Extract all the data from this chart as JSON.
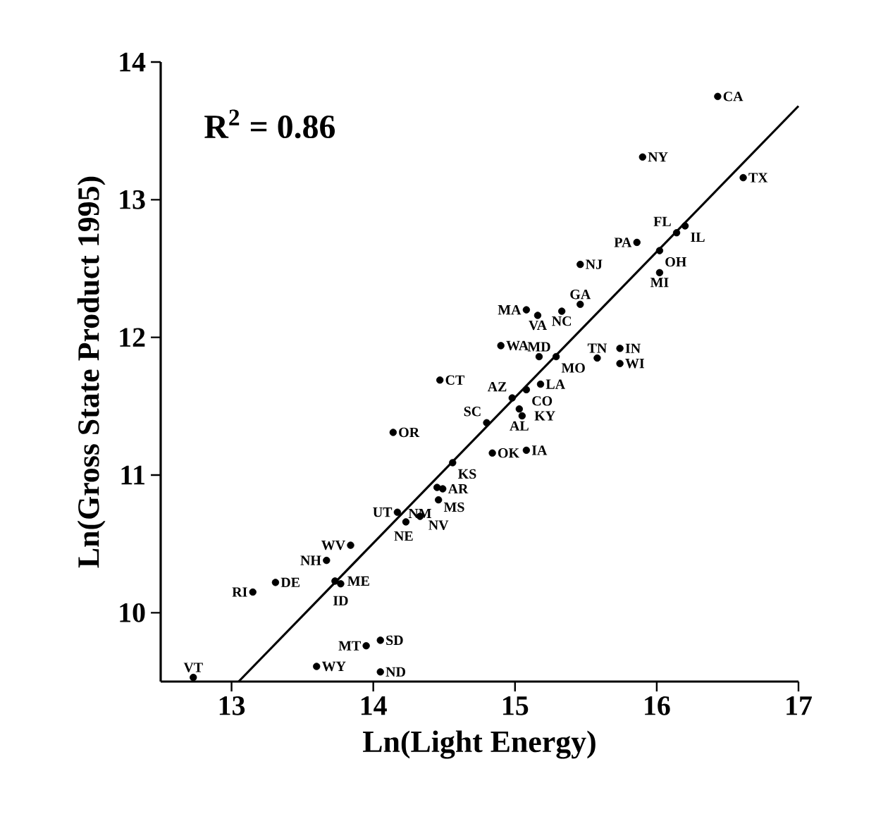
{
  "chart_data": {
    "type": "scatter",
    "xlabel": "Ln(Light Energy)",
    "ylabel": "Ln(Gross State Product 1995)",
    "xlim": [
      12.5,
      17
    ],
    "ylim": [
      9.5,
      14
    ],
    "xticks": [
      13,
      14,
      15,
      16,
      17
    ],
    "yticks": [
      10,
      11,
      12,
      13,
      14
    ],
    "series": [
      {
        "type": "scatter",
        "marker": "circle",
        "color": "#000000",
        "x": [
          16.43,
          15.9,
          16.61,
          16.2,
          16.14,
          15.86,
          16.02,
          15.46,
          16.02,
          15.46,
          15.08,
          15.16,
          15.33,
          14.9,
          15.17,
          15.29,
          15.58,
          15.74,
          15.74,
          15.18,
          15.08,
          14.98,
          15.03,
          15.05,
          14.8,
          14.84,
          15.08,
          14.47,
          14.14,
          14.56,
          14.45,
          14.49,
          14.46,
          14.33,
          14.17,
          14.23,
          13.84,
          13.67,
          13.73,
          13.77,
          13.31,
          13.15,
          14.05,
          13.95,
          13.6,
          14.05,
          12.73
        ],
        "values": [
          13.75,
          13.31,
          13.16,
          12.81,
          12.76,
          12.69,
          12.63,
          12.53,
          12.47,
          12.24,
          12.2,
          12.16,
          12.19,
          11.94,
          11.86,
          11.86,
          11.85,
          11.92,
          11.81,
          11.66,
          11.62,
          11.56,
          11.48,
          11.43,
          11.38,
          11.16,
          11.18,
          11.69,
          11.31,
          11.09,
          10.91,
          10.9,
          10.82,
          10.7,
          10.73,
          10.66,
          10.49,
          10.38,
          10.23,
          10.21,
          10.22,
          10.15,
          9.8,
          9.76,
          9.61,
          9.57,
          9.53
        ]
      },
      {
        "type": "line",
        "color": "#000000",
        "marker": "none",
        "x": [
          13.05,
          17
        ],
        "values": [
          9.5,
          13.68
        ]
      }
    ],
    "annotations": [
      "R$^{2}$ = 0.86",
      {
        "text": "CA",
        "x": 16.43,
        "y": 13.75
      },
      {
        "text": "NY",
        "x": 15.9,
        "y": 13.31
      },
      {
        "text": "TX",
        "x": 16.61,
        "y": 13.16
      },
      {
        "text": "IL",
        "x": 16.2,
        "y": 12.81
      },
      {
        "text": "FL",
        "x": 16.14,
        "y": 12.76
      },
      {
        "text": "PA",
        "x": 15.86,
        "y": 12.69
      },
      {
        "text": "OH",
        "x": 16.02,
        "y": 12.63
      },
      {
        "text": "NJ",
        "x": 15.46,
        "y": 12.53
      },
      {
        "text": "MI",
        "x": 16.02,
        "y": 12.47
      },
      {
        "text": "GA",
        "x": 15.46,
        "y": 12.24
      },
      {
        "text": "MA",
        "x": 15.08,
        "y": 12.2
      },
      {
        "text": "VA",
        "x": 15.16,
        "y": 12.16
      },
      {
        "text": "NC",
        "x": 15.33,
        "y": 12.19
      },
      {
        "text": "WA",
        "x": 14.9,
        "y": 11.94
      },
      {
        "text": "MD",
        "x": 15.17,
        "y": 11.86
      },
      {
        "text": "MO",
        "x": 15.29,
        "y": 11.86
      },
      {
        "text": "TN",
        "x": 15.58,
        "y": 11.85
      },
      {
        "text": "IN",
        "x": 15.74,
        "y": 11.92
      },
      {
        "text": "WI",
        "x": 15.74,
        "y": 11.81
      },
      {
        "text": "LA",
        "x": 15.18,
        "y": 11.66
      },
      {
        "text": "CO",
        "x": 15.08,
        "y": 11.62
      },
      {
        "text": "AZ",
        "x": 14.98,
        "y": 11.56
      },
      {
        "text": "AL",
        "x": 15.03,
        "y": 11.48
      },
      {
        "text": "KY",
        "x": 15.05,
        "y": 11.43
      },
      {
        "text": "SC",
        "x": 14.8,
        "y": 11.38
      },
      {
        "text": "OK",
        "x": 14.84,
        "y": 11.16
      },
      {
        "text": "IA",
        "x": 15.08,
        "y": 11.18
      },
      {
        "text": "CT",
        "x": 14.47,
        "y": 11.69
      },
      {
        "text": "OR",
        "x": 14.14,
        "y": 11.31
      },
      {
        "text": "KS",
        "x": 14.56,
        "y": 11.09
      },
      {
        "text": "MS",
        "x": 14.45,
        "y": 10.91
      },
      {
        "text": "AR",
        "x": 14.49,
        "y": 10.9
      },
      {
        "text": "NV",
        "x": 14.46,
        "y": 10.82
      },
      {
        "text": "NE",
        "x": 14.33,
        "y": 10.7
      },
      {
        "text": "UT",
        "x": 14.17,
        "y": 10.73
      },
      {
        "text": "NM",
        "x": 14.23,
        "y": 10.66
      },
      {
        "text": "WV",
        "x": 13.84,
        "y": 10.49
      },
      {
        "text": "NH",
        "x": 13.67,
        "y": 10.38
      },
      {
        "text": "ME",
        "x": 13.73,
        "y": 10.23
      },
      {
        "text": "ID",
        "x": 13.77,
        "y": 10.21
      },
      {
        "text": "DE",
        "x": 13.31,
        "y": 10.22
      },
      {
        "text": "RI",
        "x": 13.15,
        "y": 10.15
      },
      {
        "text": "SD",
        "x": 14.05,
        "y": 9.8
      },
      {
        "text": "MT",
        "x": 13.95,
        "y": 9.76
      },
      {
        "text": "WY",
        "x": 13.6,
        "y": 9.61
      },
      {
        "text": "ND",
        "x": 14.05,
        "y": 9.57
      },
      {
        "text": "VT",
        "x": 12.73,
        "y": 9.53
      }
    ]
  }
}
